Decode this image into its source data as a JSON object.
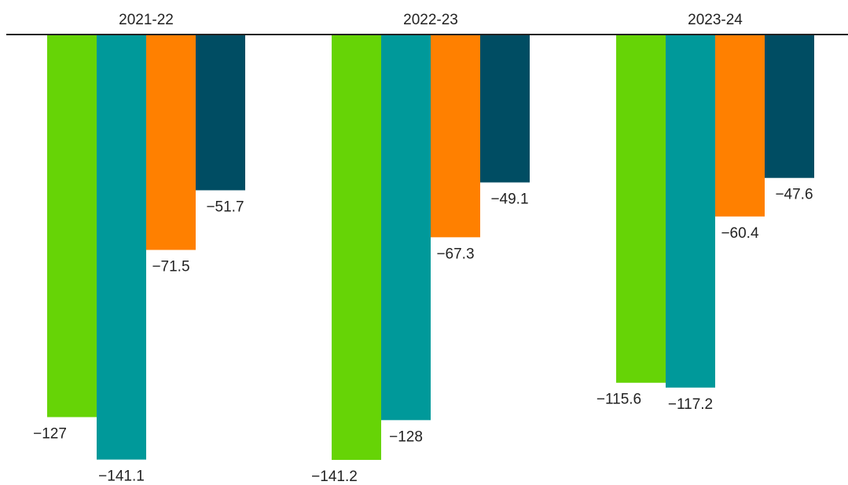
{
  "chart_data": {
    "type": "bar",
    "categories": [
      "2021-22",
      "2022-23",
      "2023-24"
    ],
    "series": [
      {
        "color": "#66d406",
        "values": [
          -127,
          -141.2,
          -115.6
        ],
        "labels": [
          "−127",
          "−141.2",
          "−115.6"
        ]
      },
      {
        "color": "#00999a",
        "values": [
          -141.1,
          -128,
          -117.2
        ],
        "labels": [
          "−141.1",
          "−128",
          "−117.2"
        ]
      },
      {
        "color": "#ff8000",
        "values": [
          -71.5,
          -67.3,
          -60.4
        ],
        "labels": [
          "−71.5",
          "−67.3",
          "−60.4"
        ]
      },
      {
        "color": "#004d63",
        "values": [
          -51.7,
          -49.1,
          -47.6
        ],
        "labels": [
          "−51.7",
          "−49.1",
          "−47.6"
        ]
      }
    ],
    "ylim": [
      -141.2,
      0
    ],
    "category_labels_position": "top",
    "grid": false,
    "legend": "none"
  }
}
